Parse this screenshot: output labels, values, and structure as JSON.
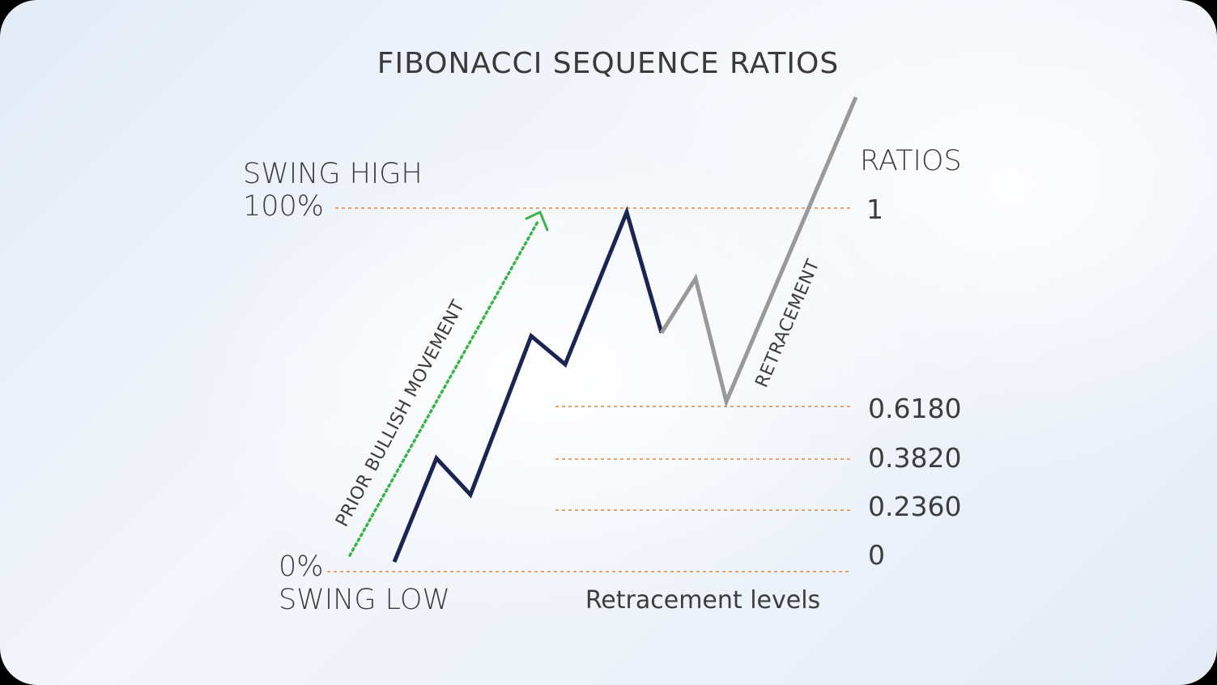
{
  "title": "FIBONACCI SEQUENCE RATIOS",
  "swing_high": {
    "label": "SWING HIGH",
    "percent": "100%"
  },
  "swing_low": {
    "label": "SWING LOW",
    "percent": "0%"
  },
  "ratios_header": "RATIOS",
  "ratio_levels": [
    "1",
    "0.6180",
    "0.3820",
    "0.2360",
    "0"
  ],
  "prior_movement_label": "PRIOR BULLISH MOVEMENT",
  "retracement_label": "RETRACEMENT",
  "caption": "Retracement levels",
  "colors": {
    "bullish_line": "#1c2452",
    "retracement_line": "#999999",
    "level_line": "#e2873a",
    "prior_arrow": "#3ab54a",
    "text": "#3d3d3d"
  }
}
